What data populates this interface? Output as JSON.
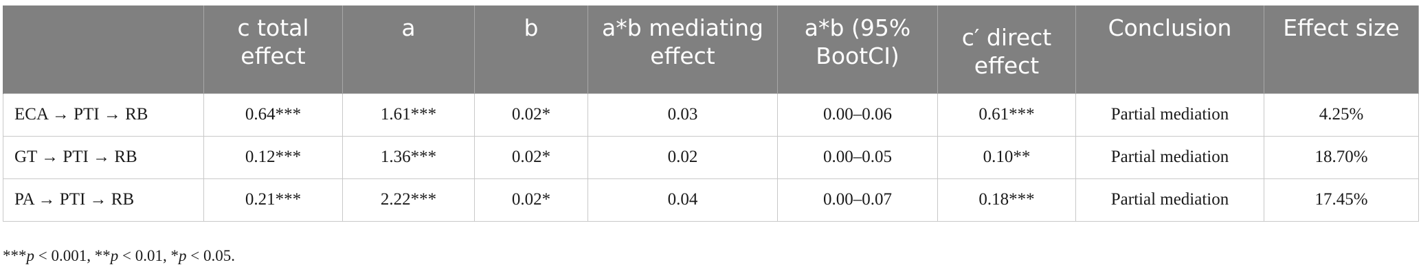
{
  "table": {
    "headers": [
      "",
      "c total effect",
      "a",
      "b",
      "a*b mediating effect",
      "a*b (95% BootCI)",
      "c′ direct effect",
      "Conclusion",
      "Effect size"
    ],
    "rows": [
      [
        "ECA → PTI → RB",
        "0.64***",
        "1.61***",
        "0.02*",
        "0.03",
        "0.00–0.06",
        "0.61***",
        "Partial mediation",
        "4.25%"
      ],
      [
        "GT → PTI → RB",
        "0.12***",
        "1.36***",
        "0.02*",
        "0.02",
        "0.00–0.05",
        "0.10**",
        "Partial mediation",
        "18.70%"
      ],
      [
        "PA → PTI → RB",
        "0.21***",
        "2.22***",
        "0.02*",
        "0.04",
        "0.00–0.07",
        "0.18***",
        "Partial mediation",
        "17.45%"
      ]
    ]
  },
  "footnote": {
    "parts": [
      {
        "text": "***",
        "italic": false
      },
      {
        "text": "p",
        "italic": true
      },
      {
        "text": " < 0.001, **",
        "italic": false
      },
      {
        "text": "p",
        "italic": true
      },
      {
        "text": " < 0.01, *",
        "italic": false
      },
      {
        "text": "p",
        "italic": true
      },
      {
        "text": " < 0.05.",
        "italic": false
      }
    ]
  }
}
